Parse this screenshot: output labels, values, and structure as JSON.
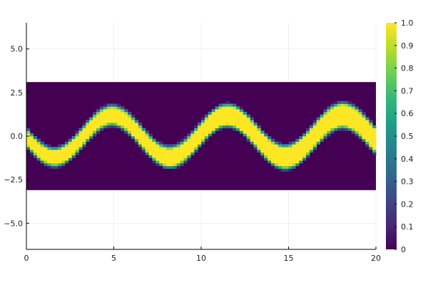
{
  "chart_data": {
    "type": "heatmap",
    "title": "",
    "xlabel": "",
    "ylabel": "",
    "xlim": [
      0,
      20
    ],
    "ylim": [
      -6.5,
      6.5
    ],
    "x_ticks": [
      {
        "value": 0,
        "label": "0"
      },
      {
        "value": 5,
        "label": "5"
      },
      {
        "value": 10,
        "label": "10"
      },
      {
        "value": 15,
        "label": "15"
      },
      {
        "value": 20,
        "label": "20"
      }
    ],
    "y_ticks": [
      {
        "value": 5,
        "label": "5.0"
      },
      {
        "value": 2.5,
        "label": "2.5"
      },
      {
        "value": 0,
        "label": "0.0"
      },
      {
        "value": -2.5,
        "label": "−2.5"
      },
      {
        "value": -5,
        "label": "−5.0"
      }
    ],
    "heatmap_extent": {
      "x": [
        0,
        20
      ],
      "y": [
        -3.1,
        3.1
      ]
    },
    "band": {
      "function": "sine",
      "amplitude": 1.2,
      "period": 6.6,
      "phase_x_at_peak": 11.5,
      "base_half_width": 0.35,
      "width_growth_per_unit_x": 0.012,
      "edge_softness": 0.28
    },
    "grid": true,
    "colorbar": {
      "colormap": "viridis",
      "range": [
        0,
        1
      ],
      "ticks": [
        {
          "value": 1.0,
          "label": "1.0"
        },
        {
          "value": 0.9,
          "label": "0.9"
        },
        {
          "value": 0.8,
          "label": "0.8"
        },
        {
          "value": 0.7,
          "label": "0.7"
        },
        {
          "value": 0.6,
          "label": "0.6"
        },
        {
          "value": 0.5,
          "label": "0.5"
        },
        {
          "value": 0.4,
          "label": "0.4"
        },
        {
          "value": 0.3,
          "label": "0.3"
        },
        {
          "value": 0.2,
          "label": "0.2"
        },
        {
          "value": 0.1,
          "label": "0.1"
        },
        {
          "value": 0.0,
          "label": "0"
        }
      ]
    },
    "colors": {
      "background": "#ffffff",
      "axis": "#000000",
      "grid": "#e6e6e6",
      "viridis_stops": [
        "#440154",
        "#482878",
        "#3e4989",
        "#31688e",
        "#26828e",
        "#1f9e89",
        "#35b779",
        "#6ece58",
        "#b5de2b",
        "#fde725"
      ]
    }
  }
}
